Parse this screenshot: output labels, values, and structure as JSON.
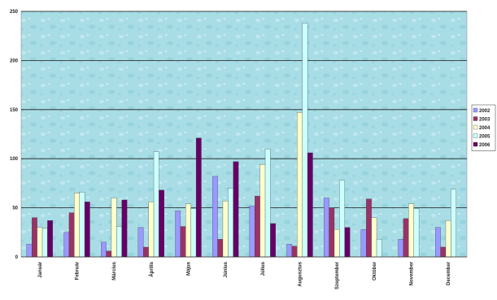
{
  "chart_data": {
    "type": "bar",
    "categories": [
      "Január",
      "Február",
      "Március",
      "Április",
      "Május",
      "Június",
      "Július",
      "Augusztus",
      "Szeptember",
      "Október",
      "November",
      "December"
    ],
    "series": [
      {
        "name": "2002",
        "color": "#9999ff",
        "values": [
          13,
          25,
          15,
          30,
          47,
          82,
          52,
          13,
          60,
          28,
          18,
          30
        ]
      },
      {
        "name": "2003",
        "color": "#993366",
        "values": [
          40,
          45,
          6,
          10,
          31,
          18,
          62,
          11,
          50,
          59,
          39,
          10
        ]
      },
      {
        "name": "2004",
        "color": "#ffffcc",
        "values": [
          30,
          65,
          60,
          56,
          54,
          57,
          94,
          147,
          28,
          40,
          54,
          37
        ]
      },
      {
        "name": "2005",
        "color": "#ccffff",
        "values": [
          29,
          66,
          31,
          107,
          49,
          70,
          110,
          238,
          78,
          18,
          49,
          69
        ]
      },
      {
        "name": "2006",
        "color": "#660066",
        "values": [
          37,
          56,
          58,
          68,
          121,
          97,
          34,
          106,
          30,
          0,
          0,
          0
        ]
      }
    ],
    "yticks": [
      "0",
      "50",
      "100",
      "150",
      "200",
      "250"
    ],
    "ylim": [
      0,
      250
    ],
    "grid": true,
    "legend": "right",
    "plot_background": "#a9dde6"
  }
}
